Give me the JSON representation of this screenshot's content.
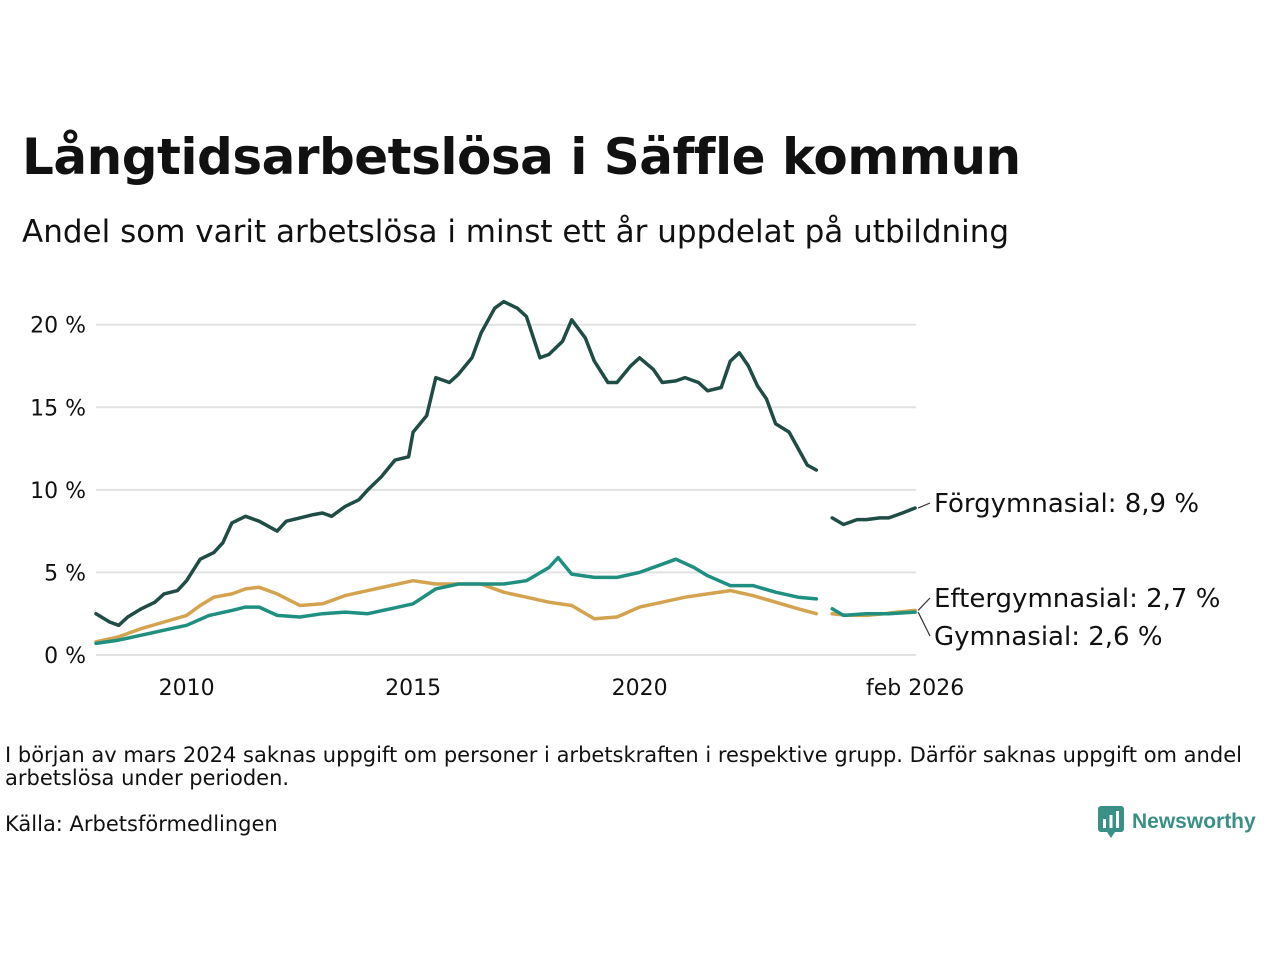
{
  "title": "Långtidsarbetslösa i Säffle kommun",
  "subtitle": "Andel som varit arbetslösa i minst ett år uppdelat på utbildning",
  "note": "I början av mars 2024 saknas uppgift om personer i arbetskraften i respektive grupp. Därför saknas uppgift om andel arbetslösa under perioden.",
  "source": "Källa: Arbetsförmedlingen",
  "brand": {
    "name": "Newsworthy",
    "color": "#3a8f86"
  },
  "chart_data": {
    "type": "line",
    "title": "Långtidsarbetslösa i Säffle kommun",
    "xlabel": "",
    "ylabel": "",
    "ylim": [
      0,
      21.8
    ],
    "xlim": [
      2008.0,
      2026.1
    ],
    "x_ticks": [
      {
        "value": 2010,
        "label": "2010"
      },
      {
        "value": 2015,
        "label": "2015"
      },
      {
        "value": 2020,
        "label": "2020"
      },
      {
        "value": 2026.08,
        "label": "feb 2026"
      }
    ],
    "y_ticks": [
      {
        "value": 0,
        "label": "0 %"
      },
      {
        "value": 5,
        "label": "5 %"
      },
      {
        "value": 10,
        "label": "10 %"
      },
      {
        "value": 15,
        "label": "15 %"
      },
      {
        "value": 20,
        "label": "20 %"
      }
    ],
    "grid": true,
    "series": [
      {
        "name": "Förgymnasial",
        "label": "Förgymnasial: 8,9 %",
        "color": "#1f4d45",
        "segments": [
          [
            [
              2008.0,
              2.5
            ],
            [
              2008.3,
              2.0
            ],
            [
              2008.5,
              1.8
            ],
            [
              2008.7,
              2.3
            ],
            [
              2009.0,
              2.8
            ],
            [
              2009.3,
              3.2
            ],
            [
              2009.5,
              3.7
            ],
            [
              2009.8,
              3.9
            ],
            [
              2010.0,
              4.5
            ],
            [
              2010.3,
              5.8
            ],
            [
              2010.6,
              6.2
            ],
            [
              2010.8,
              6.8
            ],
            [
              2011.0,
              8.0
            ],
            [
              2011.3,
              8.4
            ],
            [
              2011.6,
              8.1
            ],
            [
              2011.8,
              7.8
            ],
            [
              2012.0,
              7.5
            ],
            [
              2012.2,
              8.1
            ],
            [
              2012.5,
              8.3
            ],
            [
              2012.8,
              8.5
            ],
            [
              2013.0,
              8.6
            ],
            [
              2013.2,
              8.4
            ],
            [
              2013.5,
              9.0
            ],
            [
              2013.8,
              9.4
            ],
            [
              2014.0,
              10.0
            ],
            [
              2014.3,
              10.8
            ],
            [
              2014.6,
              11.8
            ],
            [
              2014.9,
              12.0
            ],
            [
              2015.0,
              13.5
            ],
            [
              2015.3,
              14.5
            ],
            [
              2015.5,
              16.8
            ],
            [
              2015.8,
              16.5
            ],
            [
              2016.0,
              17.0
            ],
            [
              2016.3,
              18.0
            ],
            [
              2016.5,
              19.5
            ],
            [
              2016.8,
              21.0
            ],
            [
              2017.0,
              21.4
            ],
            [
              2017.3,
              21.0
            ],
            [
              2017.5,
              20.5
            ],
            [
              2017.8,
              18.0
            ],
            [
              2018.0,
              18.2
            ],
            [
              2018.3,
              19.0
            ],
            [
              2018.5,
              20.3
            ],
            [
              2018.8,
              19.2
            ],
            [
              2019.0,
              17.8
            ],
            [
              2019.3,
              16.5
            ],
            [
              2019.5,
              16.5
            ],
            [
              2019.8,
              17.5
            ],
            [
              2020.0,
              18.0
            ],
            [
              2020.3,
              17.3
            ],
            [
              2020.5,
              16.5
            ],
            [
              2020.8,
              16.6
            ],
            [
              2021.0,
              16.8
            ],
            [
              2021.3,
              16.5
            ],
            [
              2021.5,
              16.0
            ],
            [
              2021.8,
              16.2
            ],
            [
              2022.0,
              17.8
            ],
            [
              2022.2,
              18.3
            ],
            [
              2022.4,
              17.5
            ],
            [
              2022.6,
              16.3
            ],
            [
              2022.8,
              15.5
            ],
            [
              2023.0,
              14.0
            ],
            [
              2023.3,
              13.5
            ],
            [
              2023.5,
              12.5
            ],
            [
              2023.7,
              11.5
            ],
            [
              2023.9,
              11.2
            ]
          ],
          [
            [
              2024.25,
              8.3
            ],
            [
              2024.5,
              7.9
            ],
            [
              2024.8,
              8.2
            ],
            [
              2025.0,
              8.2
            ],
            [
              2025.3,
              8.3
            ],
            [
              2025.5,
              8.3
            ],
            [
              2025.8,
              8.6
            ],
            [
              2026.08,
              8.9
            ]
          ]
        ]
      },
      {
        "name": "Eftergymnasial",
        "label": "Eftergymnasial: 2,7 %",
        "color": "#d4a34f",
        "segments": [
          [
            [
              2008.0,
              0.8
            ],
            [
              2008.5,
              1.1
            ],
            [
              2009.0,
              1.6
            ],
            [
              2009.5,
              2.0
            ],
            [
              2010.0,
              2.4
            ],
            [
              2010.3,
              3.0
            ],
            [
              2010.6,
              3.5
            ],
            [
              2011.0,
              3.7
            ],
            [
              2011.3,
              4.0
            ],
            [
              2011.6,
              4.1
            ],
            [
              2012.0,
              3.7
            ],
            [
              2012.5,
              3.0
            ],
            [
              2013.0,
              3.1
            ],
            [
              2013.5,
              3.6
            ],
            [
              2014.0,
              3.9
            ],
            [
              2014.5,
              4.2
            ],
            [
              2015.0,
              4.5
            ],
            [
              2015.5,
              4.3
            ],
            [
              2016.0,
              4.3
            ],
            [
              2016.5,
              4.3
            ],
            [
              2017.0,
              3.8
            ],
            [
              2017.5,
              3.5
            ],
            [
              2018.0,
              3.2
            ],
            [
              2018.5,
              3.0
            ],
            [
              2019.0,
              2.2
            ],
            [
              2019.5,
              2.3
            ],
            [
              2020.0,
              2.9
            ],
            [
              2020.5,
              3.2
            ],
            [
              2021.0,
              3.5
            ],
            [
              2021.5,
              3.7
            ],
            [
              2022.0,
              3.9
            ],
            [
              2022.5,
              3.6
            ],
            [
              2023.0,
              3.2
            ],
            [
              2023.5,
              2.8
            ],
            [
              2023.9,
              2.5
            ]
          ],
          [
            [
              2024.25,
              2.5
            ],
            [
              2024.6,
              2.4
            ],
            [
              2025.0,
              2.4
            ],
            [
              2025.4,
              2.5
            ],
            [
              2025.7,
              2.6
            ],
            [
              2026.08,
              2.7
            ]
          ]
        ]
      },
      {
        "name": "Gymnasial",
        "label": "Gymnasial: 2,6 %",
        "color": "#1f9080",
        "segments": [
          [
            [
              2008.0,
              0.7
            ],
            [
              2008.5,
              0.9
            ],
            [
              2009.0,
              1.2
            ],
            [
              2009.5,
              1.5
            ],
            [
              2010.0,
              1.8
            ],
            [
              2010.5,
              2.4
            ],
            [
              2011.0,
              2.7
            ],
            [
              2011.3,
              2.9
            ],
            [
              2011.6,
              2.9
            ],
            [
              2012.0,
              2.4
            ],
            [
              2012.5,
              2.3
            ],
            [
              2013.0,
              2.5
            ],
            [
              2013.5,
              2.6
            ],
            [
              2014.0,
              2.5
            ],
            [
              2014.5,
              2.8
            ],
            [
              2015.0,
              3.1
            ],
            [
              2015.5,
              4.0
            ],
            [
              2016.0,
              4.3
            ],
            [
              2016.5,
              4.3
            ],
            [
              2017.0,
              4.3
            ],
            [
              2017.5,
              4.5
            ],
            [
              2018.0,
              5.3
            ],
            [
              2018.2,
              5.9
            ],
            [
              2018.5,
              4.9
            ],
            [
              2019.0,
              4.7
            ],
            [
              2019.5,
              4.7
            ],
            [
              2020.0,
              5.0
            ],
            [
              2020.5,
              5.5
            ],
            [
              2020.8,
              5.8
            ],
            [
              2021.2,
              5.3
            ],
            [
              2021.5,
              4.8
            ],
            [
              2022.0,
              4.2
            ],
            [
              2022.5,
              4.2
            ],
            [
              2023.0,
              3.8
            ],
            [
              2023.5,
              3.5
            ],
            [
              2023.9,
              3.4
            ]
          ],
          [
            [
              2024.25,
              2.8
            ],
            [
              2024.5,
              2.4
            ],
            [
              2025.0,
              2.5
            ],
            [
              2025.5,
              2.5
            ],
            [
              2026.08,
              2.6
            ]
          ]
        ]
      }
    ]
  }
}
